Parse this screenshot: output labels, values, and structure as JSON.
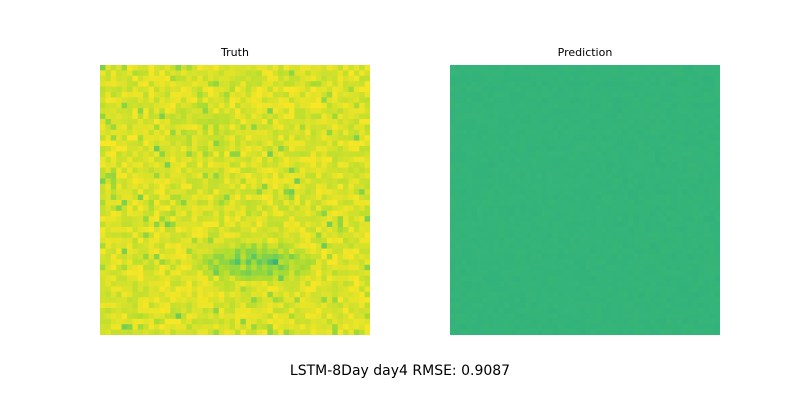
{
  "figure": {
    "caption": "LSTM-8Day day4 RMSE: 0.9087"
  },
  "chart_data": [
    {
      "type": "heatmap",
      "title": "Truth",
      "axes": "off",
      "colormap": "viridis",
      "grid": [
        50,
        50
      ],
      "value_range": [
        0,
        1
      ],
      "typical_value": 0.95,
      "low_value_regions": [
        {
          "label": "lower-middle band",
          "typical_value": 0.75
        }
      ],
      "dominant_color": "#dde318",
      "low_region_color": "#5ec962"
    },
    {
      "type": "heatmap",
      "title": "Prediction",
      "axes": "off",
      "colormap": "viridis",
      "grid": [
        50,
        50
      ],
      "value_range": [
        0,
        1
      ],
      "typical_value": 0.66,
      "dominant_color": "#2fb47c"
    }
  ]
}
